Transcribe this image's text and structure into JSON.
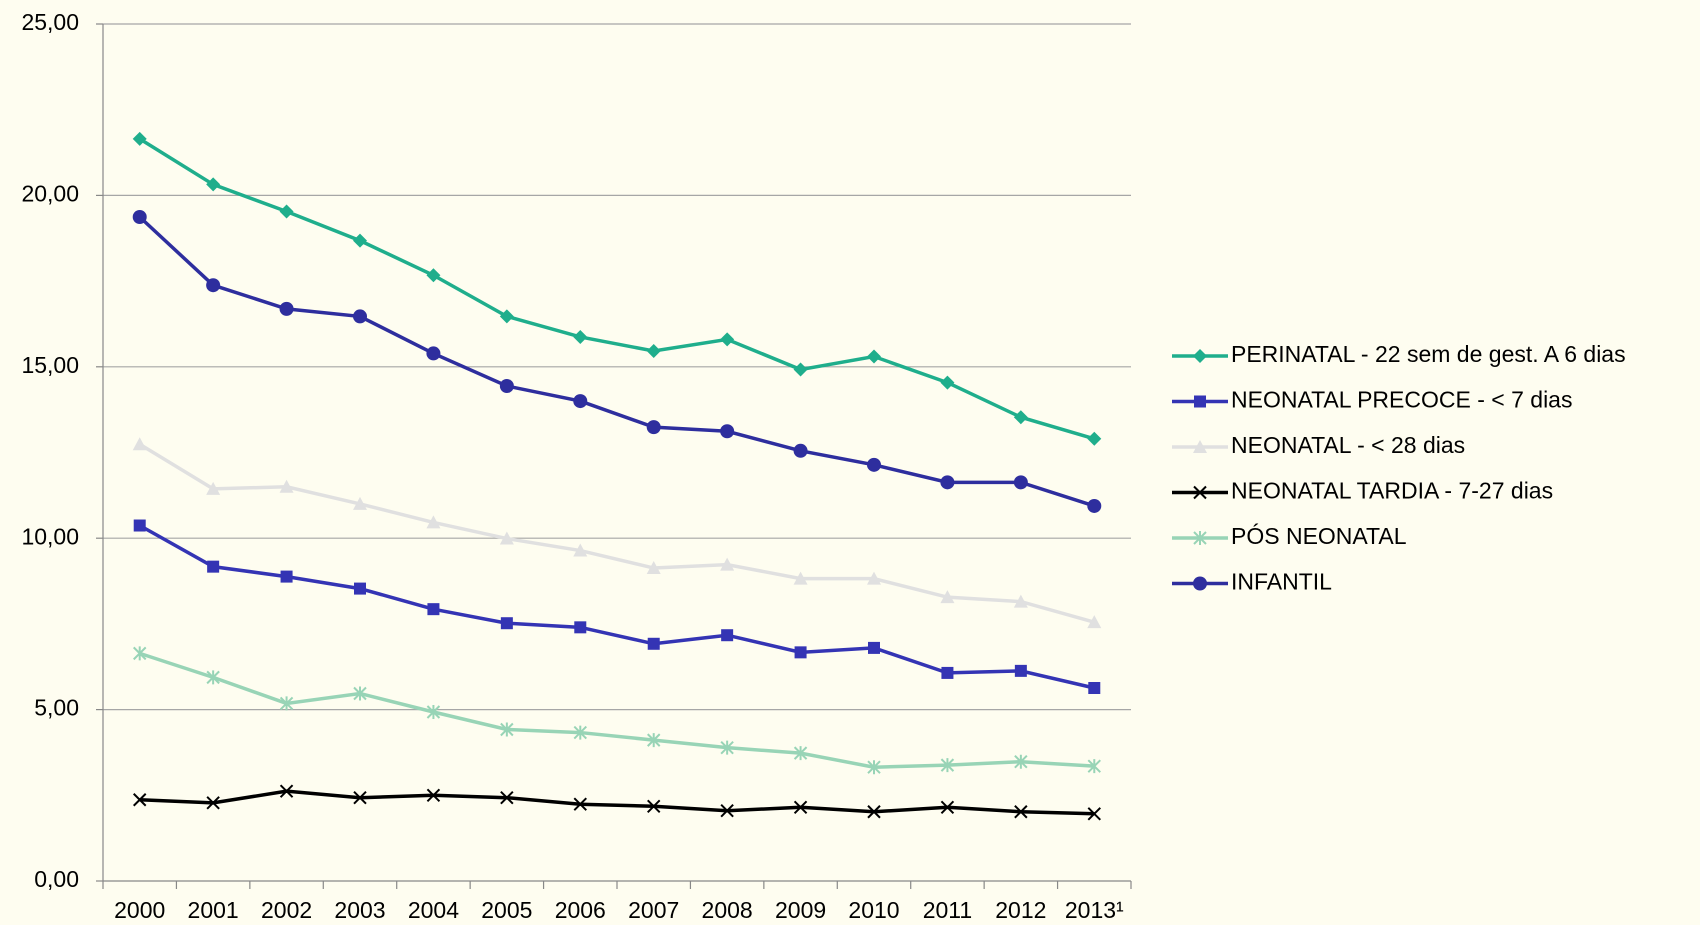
{
  "chart_data": {
    "type": "line",
    "categories": [
      "2000",
      "2001",
      "2002",
      "2003",
      "2004",
      "2005",
      "2006",
      "2007",
      "2008",
      "2009",
      "2010",
      "2011",
      "2012",
      "2013¹"
    ],
    "series": [
      {
        "name": "PERINATAL - 22 sem de gest. A 6 dias",
        "color": "#1fae8c",
        "marker": "diamond",
        "values": [
          21.65,
          20.32,
          19.53,
          18.68,
          17.67,
          16.47,
          15.87,
          15.46,
          15.8,
          14.92,
          15.3,
          14.54,
          13.53,
          12.9
        ]
      },
      {
        "name": "NEONATAL PRECOCE - < 7 dias",
        "color": "#3434b4",
        "marker": "square",
        "values": [
          10.37,
          9.17,
          8.88,
          8.53,
          7.93,
          7.52,
          7.4,
          6.92,
          7.17,
          6.67,
          6.8,
          6.07,
          6.13,
          5.63
        ]
      },
      {
        "name": "NEONATAL - < 28 dias",
        "color": "#e0e0e0",
        "marker": "triangle",
        "values": [
          12.74,
          11.44,
          11.5,
          11.0,
          10.46,
          9.99,
          9.64,
          9.13,
          9.23,
          8.82,
          8.82,
          8.28,
          8.15,
          7.55
        ]
      },
      {
        "name": "NEONATAL TARDIA - 7-27 dias",
        "color": "#000000",
        "marker": "x",
        "values": [
          2.37,
          2.28,
          2.62,
          2.43,
          2.5,
          2.43,
          2.24,
          2.18,
          2.05,
          2.15,
          2.02,
          2.15,
          2.02,
          1.96
        ]
      },
      {
        "name": "PÓS NEONATAL",
        "color": "#98d4b6",
        "marker": "star",
        "values": [
          6.64,
          5.94,
          5.18,
          5.47,
          4.93,
          4.42,
          4.33,
          4.11,
          3.89,
          3.73,
          3.32,
          3.38,
          3.48,
          3.35
        ]
      },
      {
        "name": "INFANTIL",
        "color": "#2e2e9e",
        "marker": "circle",
        "values": [
          19.37,
          17.38,
          16.69,
          16.47,
          15.39,
          14.44,
          14.0,
          13.24,
          13.12,
          12.55,
          12.14,
          11.63,
          11.63,
          10.94
        ]
      }
    ],
    "ylim": [
      0,
      25
    ],
    "yticks": [
      {
        "value": 0,
        "label": "0,00"
      },
      {
        "value": 5,
        "label": "5,00"
      },
      {
        "value": 10,
        "label": "10,00"
      },
      {
        "value": 15,
        "label": "15,00"
      },
      {
        "value": 20,
        "label": "20,00"
      },
      {
        "value": 25,
        "label": "25,00"
      }
    ],
    "grid": true,
    "legend": "right"
  }
}
